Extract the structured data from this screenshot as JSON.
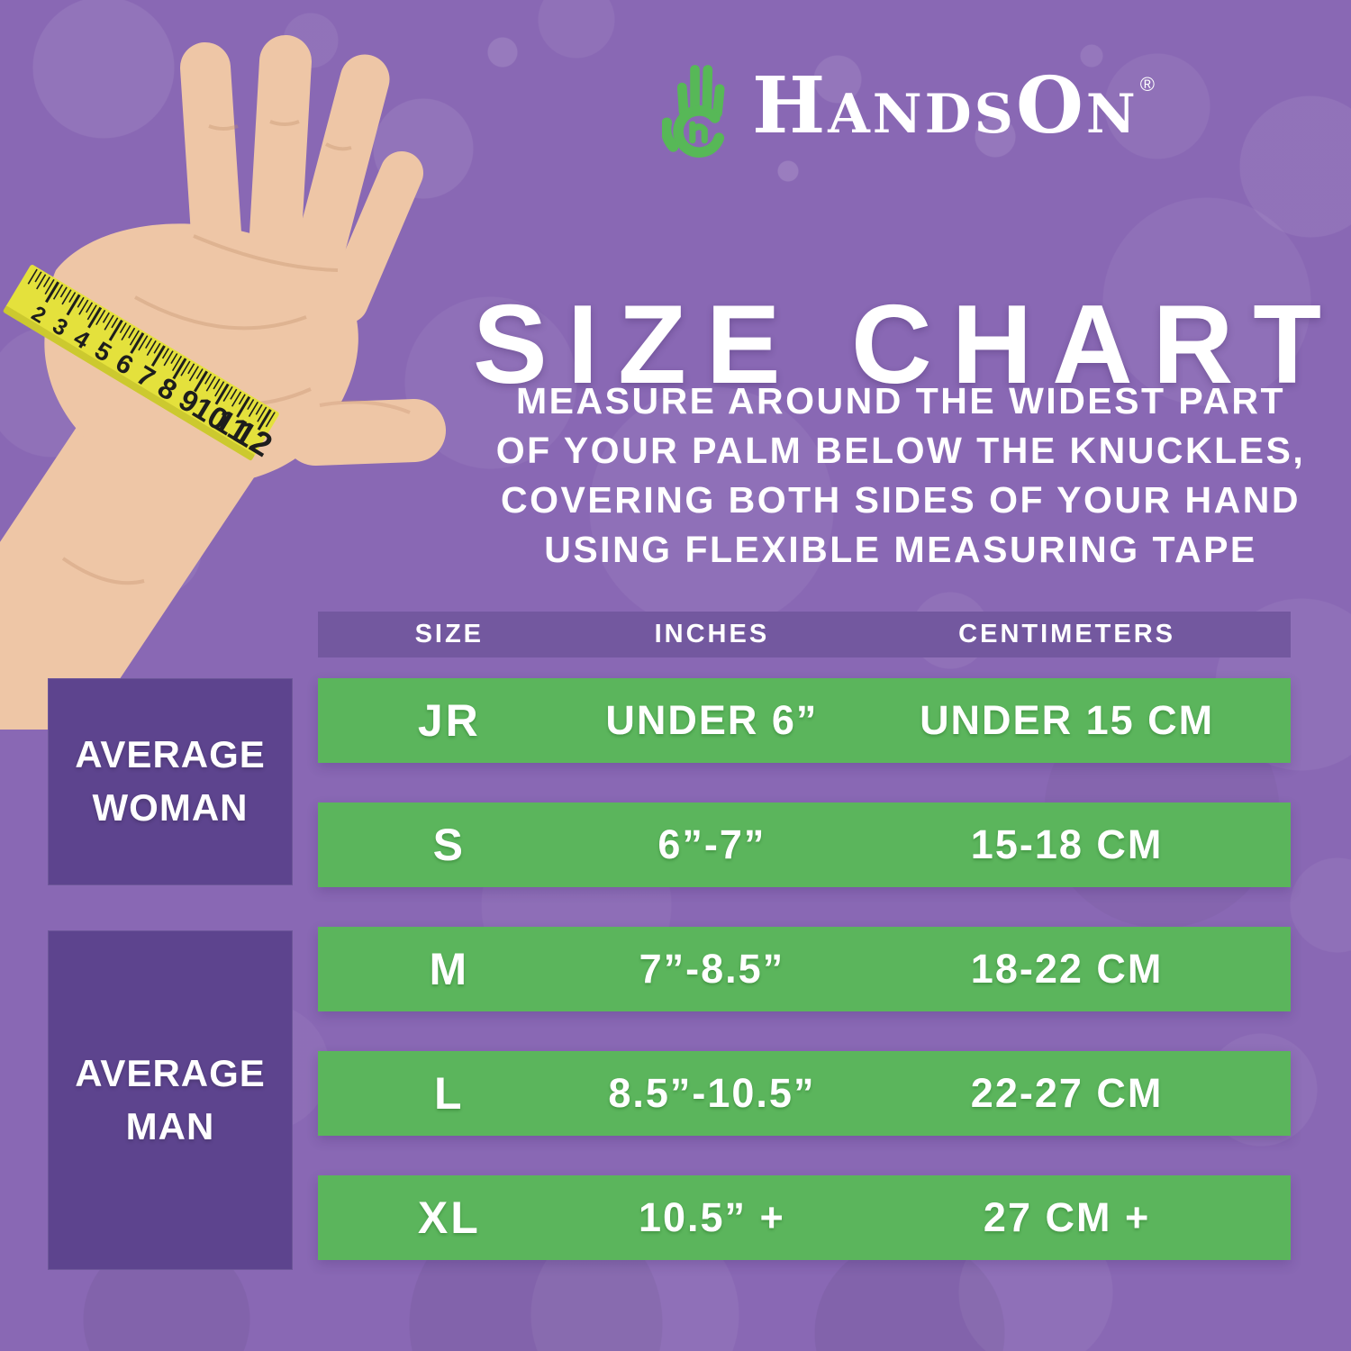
{
  "brand": {
    "name": "HandsOn",
    "registered": "®"
  },
  "title": "SIZE CHART",
  "instructions": "MEASURE AROUND THE WIDEST PART\nOF YOUR PALM BELOW THE KNUCKLES,\nCOVERING BOTH SIDES OF YOUR HAND\nUSING FLEXIBLE MEASURING TAPE",
  "hand": {
    "tape_units": [
      "2",
      "3",
      "4",
      "5",
      "6",
      "7",
      "8",
      "9",
      "10",
      "11",
      "12"
    ]
  },
  "chart_data": {
    "type": "table",
    "title": "SIZE CHART",
    "columns": [
      "SIZE",
      "INCHES",
      "CENTIMETERS"
    ],
    "rows": [
      {
        "size": "JR",
        "inches": "UNDER 6”",
        "centimeters": "UNDER 15 CM",
        "group": "AVERAGE WOMAN"
      },
      {
        "size": "S",
        "inches": "6”-7”",
        "centimeters": "15-18 CM",
        "group": "AVERAGE WOMAN"
      },
      {
        "size": "M",
        "inches": "7”-8.5”",
        "centimeters": "18-22 CM",
        "group": "AVERAGE MAN"
      },
      {
        "size": "L",
        "inches": "8.5”-10.5”",
        "centimeters": "22-27 CM",
        "group": "AVERAGE MAN"
      },
      {
        "size": "XL",
        "inches": "10.5” +",
        "centimeters": "27 CM +",
        "group": "AVERAGE MAN"
      }
    ],
    "row_groups": [
      {
        "label": "AVERAGE WOMAN",
        "rows": [
          "JR",
          "S"
        ]
      },
      {
        "label": "AVERAGE MAN",
        "rows": [
          "M",
          "L",
          "XL"
        ]
      }
    ],
    "colors": {
      "background": "#8968b4",
      "header_band": "#73589f",
      "row_green": "#5bb55c",
      "group_box": "#5d448e",
      "logo_green": "#57b857",
      "tape_yellow": "#e4e13c",
      "text": "#ffffff"
    }
  }
}
